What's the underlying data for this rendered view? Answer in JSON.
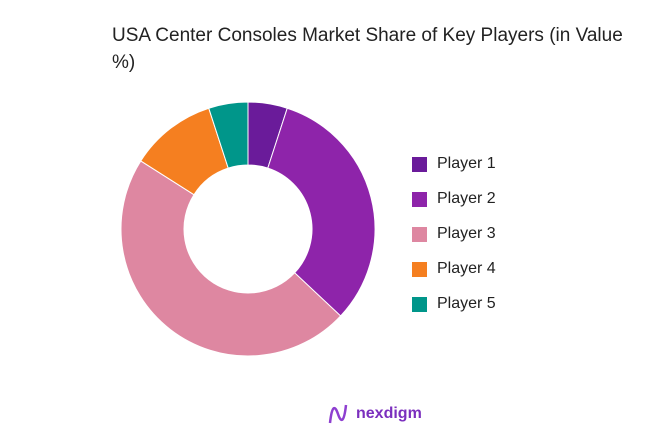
{
  "chart_data": {
    "type": "pie",
    "donut": true,
    "title": "USA Center Consoles Market Share of Key Players (in Value %)",
    "categories": [
      "Player 1",
      "Player 2",
      "Player 3",
      "Player 4",
      "Player 5"
    ],
    "values": [
      5,
      32,
      47,
      11,
      5
    ],
    "colors": [
      "#6a1b9a",
      "#8e24aa",
      "#de87a1",
      "#f57f20",
      "#00968a"
    ],
    "legend_position": "right"
  },
  "logo": {
    "text": "nexdigm"
  }
}
